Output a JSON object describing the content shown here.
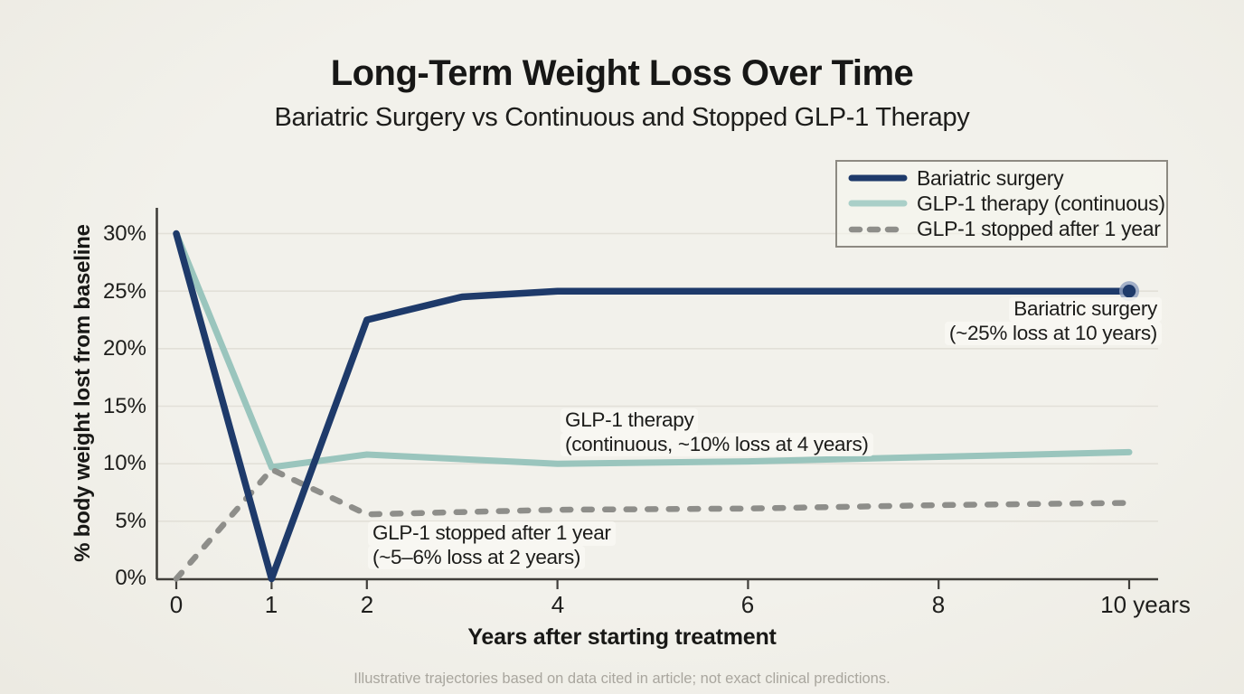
{
  "title": "Long-Term Weight Loss Over Time",
  "subtitle": "Bariatric Surgery vs Continuous and Stopped GLP-1 Therapy",
  "footer_note": "Illustrative trajectories based on data cited in article; not exact clinical predictions.",
  "colors": {
    "background": "#f0efe9",
    "bariatric_navy": "#1e3a6a",
    "glp1_teal": "#9ac5bd",
    "glp1_teal_legend": "#a9cfc8",
    "stopped_gray": "#8e8e8a",
    "gridline": "#e2e0d8",
    "axis": "#403e3a",
    "text": "#1d1d1b",
    "footer_text": "#a9a69e",
    "dot_halo": "#8fa0bf"
  },
  "legend": {
    "items": [
      {
        "label": "Bariatric surgery",
        "style": "solid",
        "color": "#1e3a6a"
      },
      {
        "label": "GLP-1 therapy (continuous)",
        "style": "solid",
        "color": "#a9cfc8"
      },
      {
        "label": "GLP-1 stopped after 1 year",
        "style": "dashed",
        "color": "#8e8e8a"
      }
    ]
  },
  "chart_data": {
    "type": "line",
    "title": "Long-Term Weight Loss Over Time",
    "subtitle": "Bariatric Surgery vs Continuous and Stopped GLP-1 Therapy",
    "xlabel": "Years after starting treatment",
    "ylabel": "% body weight lost from baseline",
    "xlim": [
      0,
      10
    ],
    "ylim": [
      0,
      30
    ],
    "x_ticks": [
      0,
      1,
      2,
      4,
      6,
      8,
      10
    ],
    "x_tick_labels": [
      "0",
      "1",
      "2",
      "4",
      "6",
      "8",
      "10 years"
    ],
    "y_ticks": [
      0,
      5,
      10,
      15,
      20,
      25,
      30
    ],
    "y_tick_labels": [
      "0%",
      "5%",
      "10%",
      "15%",
      "20%",
      "25%",
      "30%"
    ],
    "grid": "horizontal",
    "legend_position": "top-right",
    "series": [
      {
        "name": "GLP-1 therapy (continuous)",
        "style": "solid",
        "color": "#9ac5bd",
        "width": 7,
        "end_dot": false,
        "points": [
          [
            0,
            30
          ],
          [
            1,
            9.7
          ],
          [
            2,
            10.8
          ],
          [
            4,
            10
          ],
          [
            6,
            10.2
          ],
          [
            8,
            10.6
          ],
          [
            10,
            11
          ]
        ]
      },
      {
        "name": "GLP-1 stopped after 1 year",
        "style": "dashed",
        "color": "#8e8e8a",
        "width": 6.5,
        "end_dot": false,
        "points": [
          [
            0,
            0
          ],
          [
            1,
            9.5
          ],
          [
            2,
            5.6
          ],
          [
            4,
            6
          ],
          [
            6,
            6.1
          ],
          [
            8,
            6.4
          ],
          [
            10,
            6.6
          ]
        ]
      },
      {
        "name": "Bariatric surgery",
        "style": "solid",
        "color": "#1e3a6a",
        "width": 7.5,
        "end_dot": true,
        "points": [
          [
            0,
            30
          ],
          [
            1,
            0
          ],
          [
            2,
            22.5
          ],
          [
            3,
            24.5
          ],
          [
            4,
            25
          ],
          [
            6,
            25
          ],
          [
            8,
            25
          ],
          [
            10,
            25
          ]
        ]
      }
    ],
    "annotations": [
      {
        "lines": [
          "Bariatric surgery",
          "(~25% loss at 10 years)"
        ],
        "align": "right"
      },
      {
        "lines": [
          "GLP-1 therapy",
          "(continuous, ~10% loss at 4 years)"
        ],
        "align": "left"
      },
      {
        "lines": [
          "GLP-1 stopped after 1 year",
          "(~5–6% loss at 2 years)"
        ],
        "align": "left"
      }
    ]
  }
}
